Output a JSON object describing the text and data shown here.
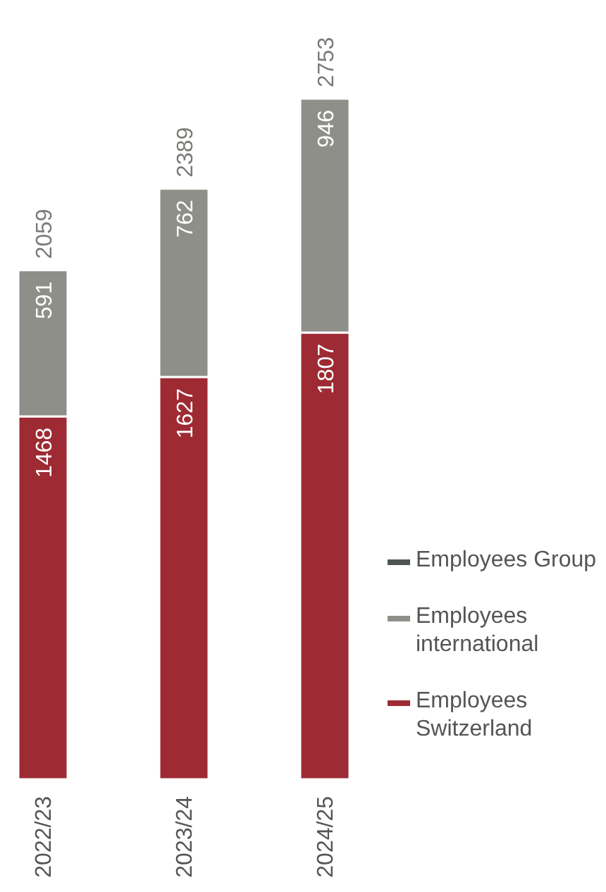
{
  "chart_data": {
    "type": "bar",
    "stacked": true,
    "categories": [
      "2022/23",
      "2023/24",
      "2024/25"
    ],
    "series": [
      {
        "name": "Employees Switzerland",
        "color": "#9e2a33",
        "values": [
          1468,
          1627,
          1807
        ]
      },
      {
        "name": "Employees international",
        "color": "#8f8f8a",
        "values": [
          591,
          762,
          946
        ]
      },
      {
        "name": "Employees Group",
        "color": "#4f5550",
        "values": [
          null,
          null,
          null
        ]
      }
    ],
    "totals": [
      "2059",
      "2389",
      "2753"
    ],
    "data_labels": true,
    "legend": "bottom right"
  }
}
